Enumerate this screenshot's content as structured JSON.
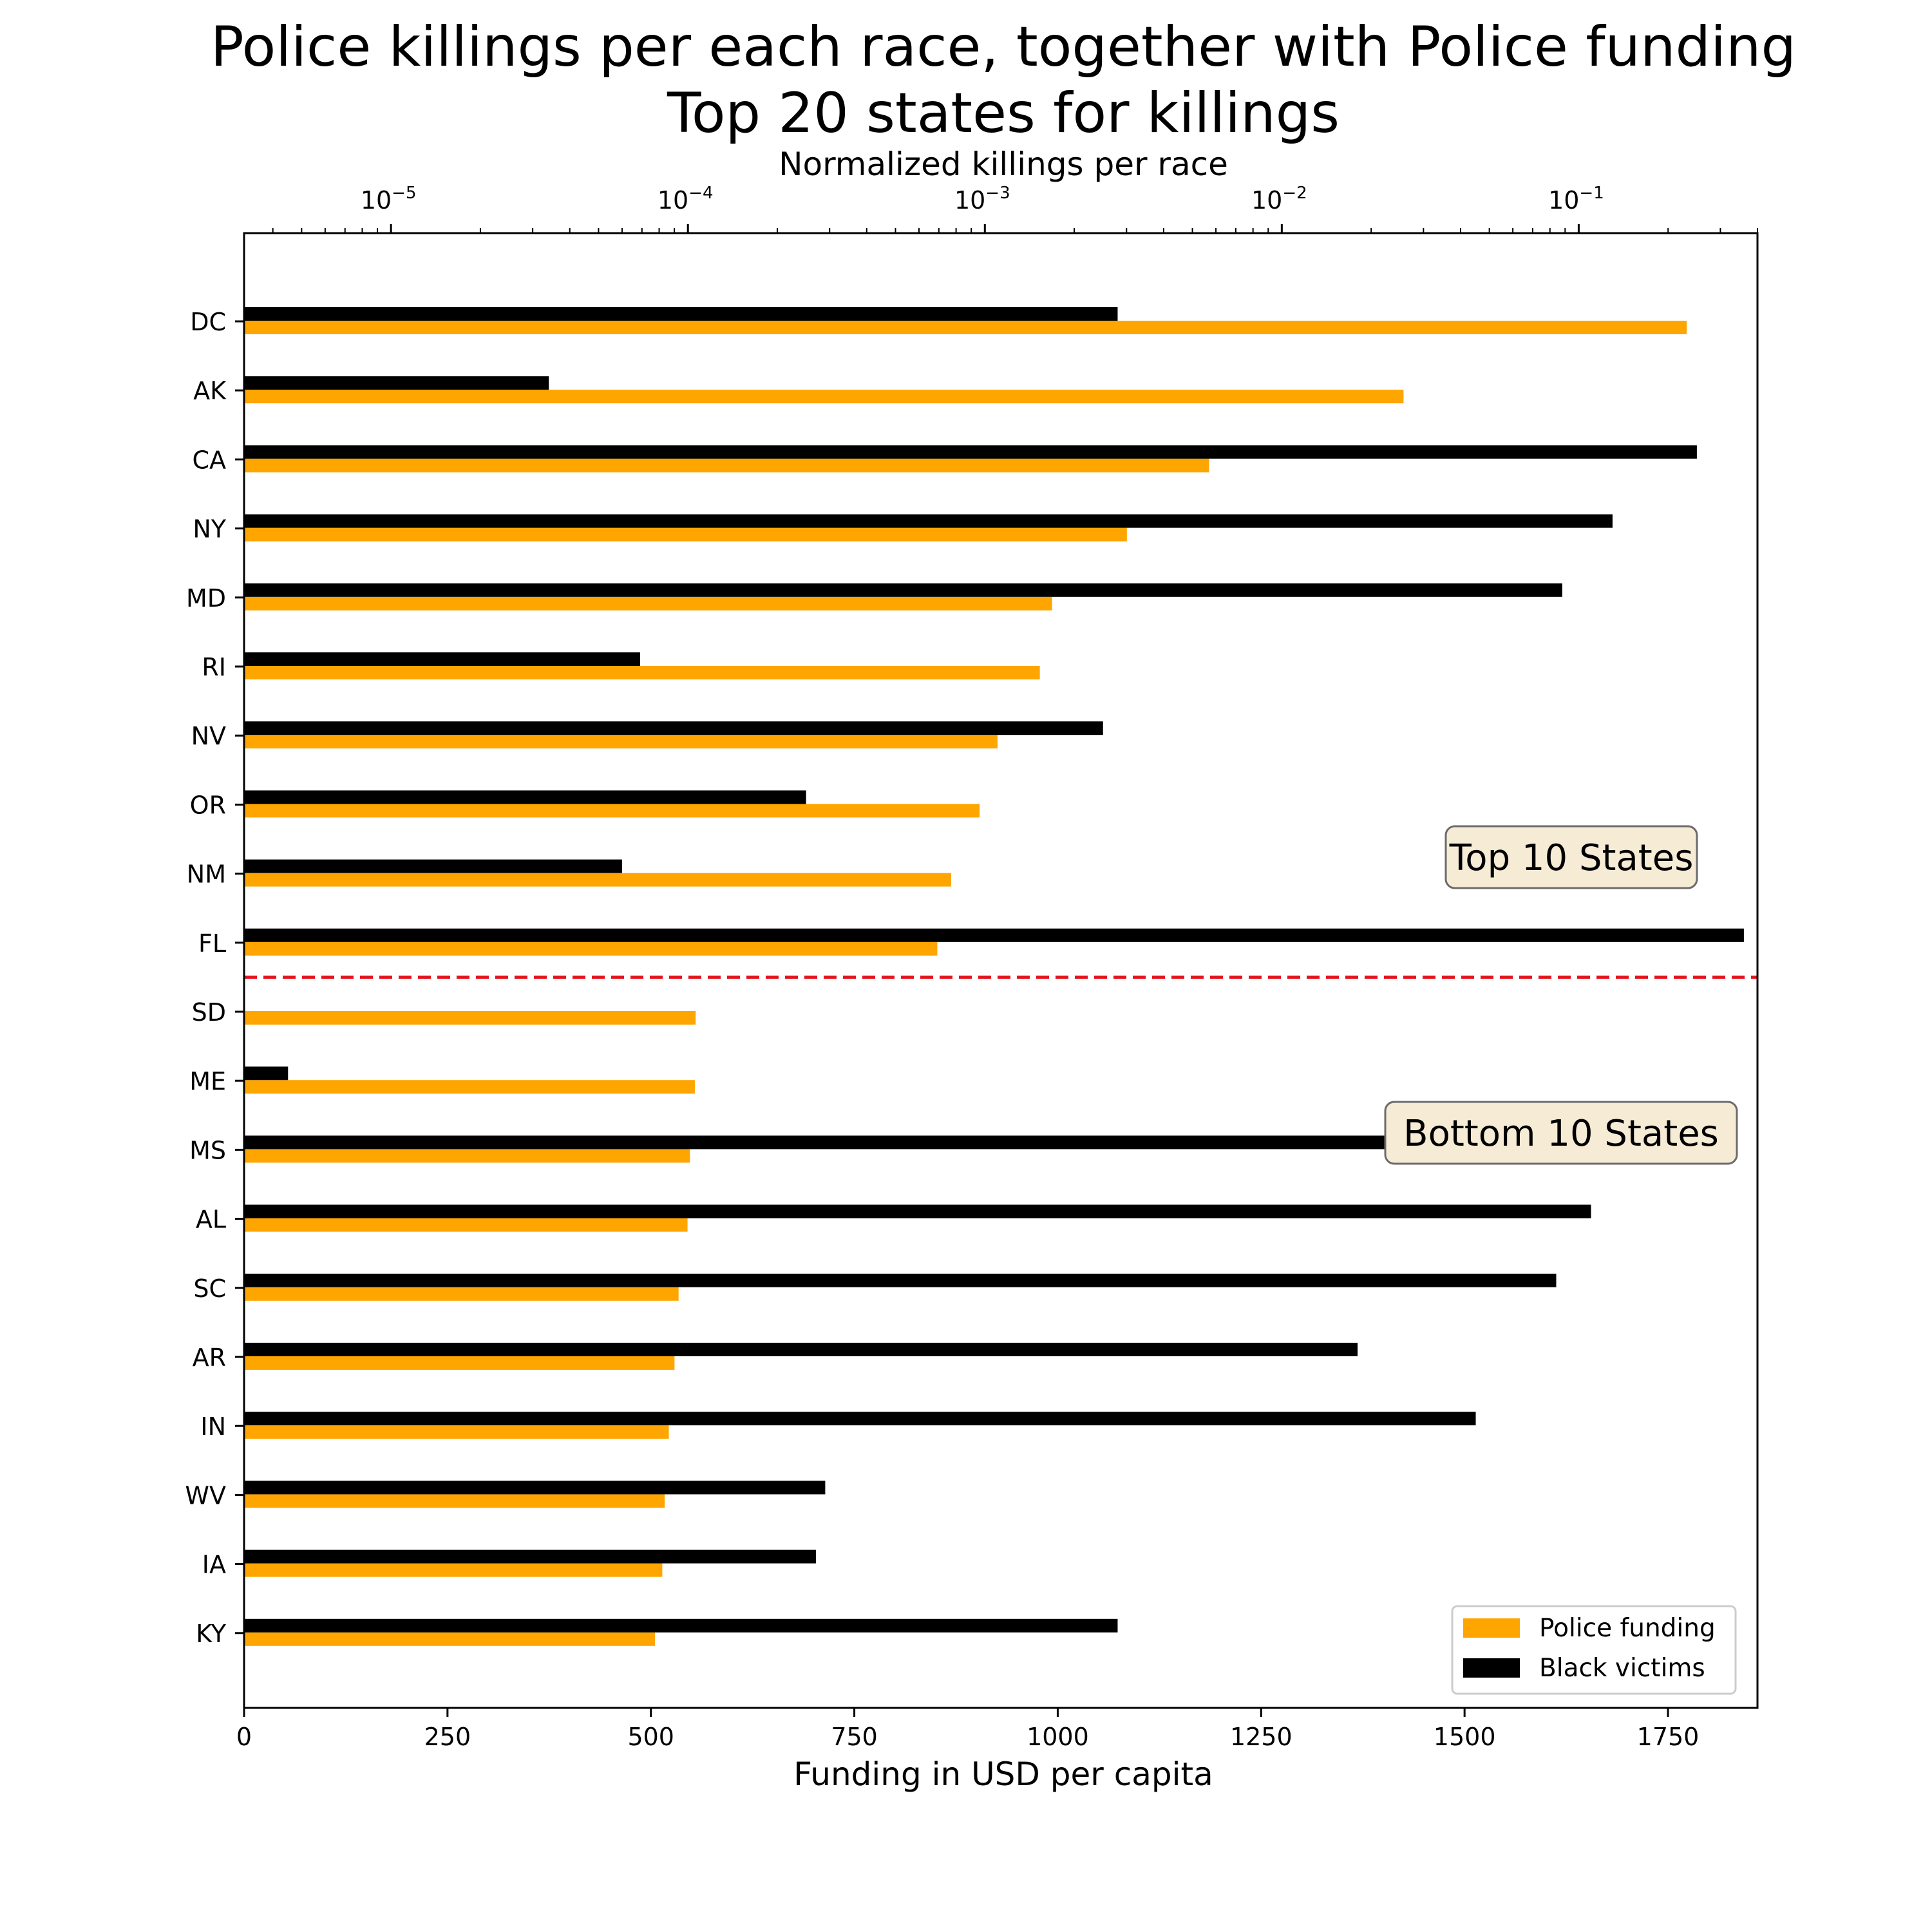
{
  "colors": {
    "funding": "#ffa500",
    "black_victims": "#000000",
    "divider": "#e3141d",
    "annotation_bg": "#f6ebd5",
    "annotation_border": "#6b6b6b"
  },
  "chart_data": {
    "type": "bar",
    "orientation": "horizontal",
    "title_line1": "Police killings per each race, together with Police funding",
    "title_line2": "Top 20 states for killings",
    "xlabel": "Funding in USD per capita",
    "x2label": "Normalized killings per race",
    "x_scale": "linear",
    "x2_scale": "log",
    "xlim": [
      0,
      1860
    ],
    "x2lim": [
      3.2e-06,
      0.4
    ],
    "x_ticks": [
      "0",
      "250",
      "500",
      "750",
      "1000",
      "1250",
      "1500",
      "1750"
    ],
    "x2_ticks": [
      {
        "base": "10",
        "exp": "−5"
      },
      {
        "base": "10",
        "exp": "−4"
      },
      {
        "base": "10",
        "exp": "−3"
      },
      {
        "base": "10",
        "exp": "−2"
      },
      {
        "base": "10",
        "exp": "−1"
      }
    ],
    "categories": [
      "DC",
      "AK",
      "CA",
      "NY",
      "MD",
      "RI",
      "NV",
      "OR",
      "NM",
      "FL",
      "SD",
      "ME",
      "MS",
      "AL",
      "SC",
      "AR",
      "IN",
      "WV",
      "IA",
      "KY"
    ],
    "series": [
      {
        "name": "Police funding",
        "axis": "bottom",
        "values": [
          1773,
          1425,
          1186,
          1085,
          993,
          978,
          926,
          904,
          869,
          852,
          555,
          554,
          548,
          545,
          534,
          529,
          522,
          517,
          514,
          505
        ]
      },
      {
        "name": "Black victims",
        "axis": "top",
        "values": [
          0.0028,
          3.4e-05,
          0.25,
          0.13,
          0.088,
          6.9e-05,
          0.0025,
          0.00025,
          6e-05,
          0.36,
          null,
          4.5e-06,
          0.06,
          0.11,
          0.084,
          0.018,
          0.045,
          0.00029,
          0.00027,
          0.0028
        ]
      }
    ],
    "divider_between": [
      "FL",
      "SD"
    ],
    "annotations": [
      "Top 10 States",
      "Bottom 10 States"
    ],
    "legend_position": "lower right",
    "grid": false
  }
}
